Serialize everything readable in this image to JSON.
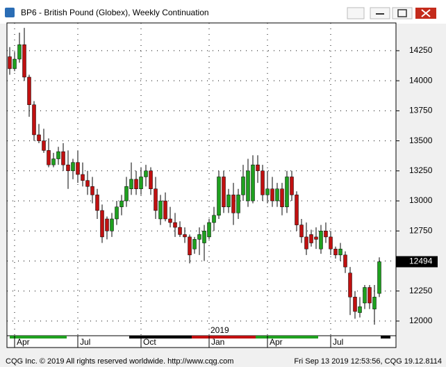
{
  "chart_data": {
    "type": "candlestick",
    "title": "BP6 - British Pound (Globex), Weekly Continuation",
    "up_color": "#1fa01f",
    "down_color": "#c01010",
    "open": [
      14200,
      14100,
      14180,
      14300,
      14030,
      13800,
      13550,
      13500,
      13420,
      13300,
      13350,
      13410,
      13300,
      13250,
      13320,
      13220,
      13170,
      13120,
      13050,
      12920,
      12850,
      12750,
      12850,
      12950,
      13000,
      13100,
      13180,
      13100,
      13200,
      13250,
      13100,
      12850,
      13000,
      12850,
      12820,
      12780,
      12720,
      12700,
      12600,
      12680,
      12650,
      12700,
      12820,
      12880,
      13200,
      12950,
      13050,
      12900,
      13050,
      13000,
      13000,
      13300,
      13250,
      13050,
      13100,
      13000,
      13100,
      12950,
      13200,
      13050,
      12800,
      12700,
      12720,
      12700,
      12600,
      12750,
      12700,
      12600,
      12550,
      12550,
      12400,
      12200,
      12070,
      12150,
      12280,
      12100,
      12230
    ],
    "high": [
      14280,
      14240,
      14400,
      14440,
      14050,
      13830,
      13640,
      13600,
      13520,
      13400,
      13450,
      13480,
      13420,
      13350,
      13420,
      13320,
      13250,
      13200,
      13100,
      12970,
      12870,
      12900,
      13000,
      13050,
      13200,
      13320,
      13250,
      13280,
      13300,
      13280,
      13200,
      13050,
      13070,
      12950,
      12900,
      12830,
      12780,
      12720,
      12700,
      12780,
      12800,
      12850,
      12950,
      13250,
      13250,
      13100,
      13150,
      13100,
      13300,
      13350,
      13380,
      13380,
      13300,
      13250,
      13200,
      13150,
      13150,
      13250,
      13250,
      13080,
      12850,
      12820,
      12760,
      12780,
      12800,
      12820,
      12750,
      12620,
      12650,
      12580,
      12450,
      12250,
      12200,
      12300,
      12300,
      12300,
      12530
    ],
    "low": [
      14050,
      14080,
      14150,
      14000,
      13700,
      13500,
      13480,
      13400,
      13280,
      13280,
      13300,
      13250,
      13100,
      13180,
      13150,
      13120,
      13050,
      12980,
      12850,
      12650,
      12680,
      12700,
      12800,
      12880,
      12950,
      13050,
      13050,
      13050,
      13120,
      13050,
      12850,
      12800,
      12830,
      12780,
      12700,
      12700,
      12650,
      12480,
      12560,
      12550,
      12500,
      12680,
      12750,
      12850,
      12900,
      12900,
      12800,
      12850,
      13000,
      12950,
      12980,
      13150,
      13000,
      12980,
      12950,
      12950,
      12880,
      12900,
      13000,
      12750,
      12650,
      12550,
      12620,
      12600,
      12560,
      12650,
      12550,
      12520,
      12500,
      12400,
      12050,
      12020,
      12030,
      12100,
      12100,
      11970,
      12200
    ],
    "close": [
      14100,
      14180,
      14300,
      14030,
      13800,
      13550,
      13500,
      13420,
      13300,
      13350,
      13410,
      13300,
      13250,
      13320,
      13220,
      13170,
      13120,
      13050,
      12920,
      12700,
      12750,
      12850,
      12950,
      13000,
      13120,
      13180,
      13100,
      13200,
      13250,
      13100,
      12920,
      13000,
      12850,
      12820,
      12780,
      12720,
      12700,
      12550,
      12680,
      12720,
      12750,
      12820,
      12880,
      13200,
      12950,
      13050,
      12900,
      13050,
      13200,
      13250,
      13300,
      13250,
      13050,
      13100,
      13000,
      13100,
      12950,
      13200,
      13050,
      12800,
      12700,
      12600,
      12650,
      12680,
      12750,
      12700,
      12600,
      12550,
      12600,
      12450,
      12200,
      12080,
      12120,
      12280,
      12150,
      12200,
      12494
    ],
    "ylim": [
      11878,
      14481
    ],
    "yticks": [
      12000,
      12250,
      12500,
      12750,
      13000,
      13250,
      13500,
      13750,
      14000,
      14250
    ],
    "grid": true,
    "xticks": [
      {
        "value": 1,
        "label": "Apr"
      },
      {
        "value": 14,
        "label": "Jul"
      },
      {
        "value": 27,
        "label": "Oct"
      },
      {
        "value": 41,
        "label": "Jan"
      },
      {
        "value": 53,
        "label": "Apr"
      },
      {
        "value": 66,
        "label": "Jul"
      }
    ],
    "year_marker": {
      "value": 41,
      "label": "2019"
    },
    "footer_left": "CQG Inc. © 2019 All rights reserved worldwide. http://www.cqg.com",
    "footer_right": "Fri Sep 13 2019 12:53:56, CQG 19.12.8114"
  }
}
